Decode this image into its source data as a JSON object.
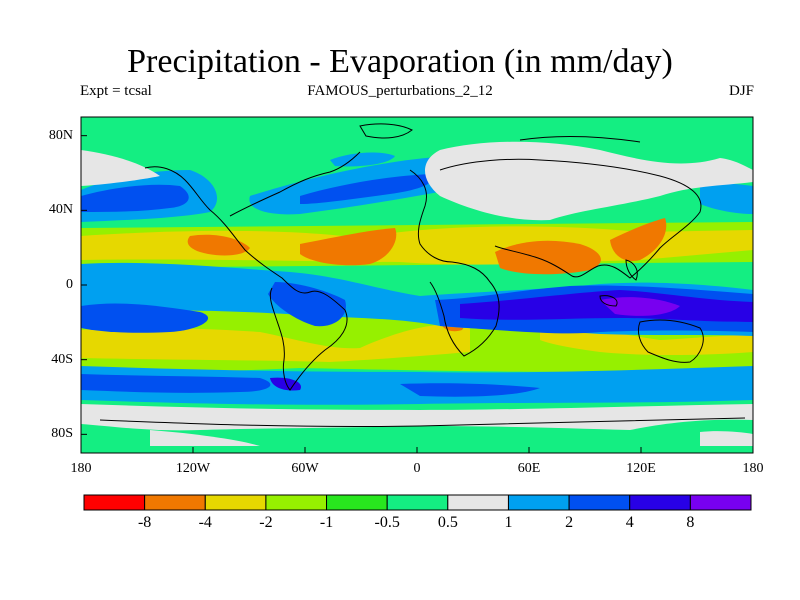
{
  "title": "Precipitation - Evaporation (in mm/day)",
  "left_label": "Expt = tcsal",
  "center_label": "FAMOUS_perturbations_2_12",
  "right_label": "DJF",
  "map": {
    "projection": "cylindrical-equidistant",
    "lon_range": [
      -180,
      180
    ],
    "lat_range": [
      -90,
      90
    ],
    "y_ticks": [
      {
        "lat": 80,
        "label": "80N"
      },
      {
        "lat": 40,
        "label": "40N"
      },
      {
        "lat": 0,
        "label": "0"
      },
      {
        "lat": -40,
        "label": "40S"
      },
      {
        "lat": -80,
        "label": "80S"
      }
    ],
    "x_ticks": [
      {
        "lon": -180,
        "label": "180"
      },
      {
        "lon": -120,
        "label": "120W"
      },
      {
        "lon": -60,
        "label": "60W"
      },
      {
        "lon": 0,
        "label": "0"
      },
      {
        "lon": 60,
        "label": "60E"
      },
      {
        "lon": 120,
        "label": "120E"
      },
      {
        "lon": 180,
        "label": "180"
      }
    ]
  },
  "colorbar": {
    "colors": [
      "#ff0000",
      "#f07800",
      "#e6d800",
      "#96f000",
      "#28e61e",
      "#14ee82",
      "#e6e6e6",
      "#00a0f0",
      "#0050f0",
      "#2800e6",
      "#7800f0"
    ],
    "labels": [
      "-8",
      "-4",
      "-2",
      "-1",
      "-0.5",
      "0.5",
      "1",
      "2",
      "4",
      "8"
    ]
  }
}
